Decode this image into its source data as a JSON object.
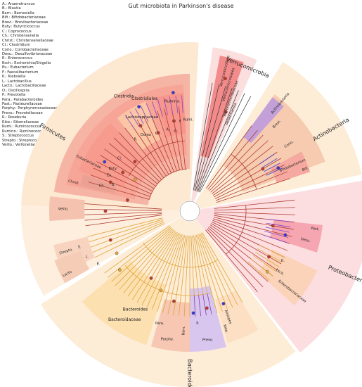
{
  "title": "Gut microbiota in Parkinson's disease",
  "legend": [
    "A.: Anaerotruncus",
    "B.: Blautia",
    "Barn.: Barnesiella",
    "Bifi.: Bifidobacteriaceae",
    "Brevi.: Brevibacteriaceae",
    "Buty.: Butyricicoccus",
    "C.: Coprococcus",
    "Ch.: Christensenella",
    "Christ.: Christensenellaceae",
    "Cl.: Clostridium",
    "Corio.: Coriobacteriaceae",
    "Desu.: Desulfovibrionaceae",
    "E.: Enterococcus",
    "Esch.: Escherichia/Shigella",
    "Eu.: Eubacterium",
    "F.: Faecalibacterium",
    "K.: Klebsiella",
    "L.: Lactobacillus",
    "Lacto.: Lactobacillaceae",
    "O.: Oscillospira",
    "P.: Prevotella",
    "Para.: Parabacteroides",
    "Past.: Pasteurellaceae",
    "Porphy.: Porphyromonadaceae",
    "Prevo.: Prevotellaceae",
    "R.: Roseburia",
    "Rike.: Rikenellaceae",
    "Rumi.: Ruminococcus",
    "Rumino.: Ruminococcaceae",
    "S.: Streptococcus",
    "Strepto.: Streptococcaceae",
    "Veillo.: Veillonellaceae"
  ],
  "phyla": {
    "firmicutes": "Firmicutes",
    "verrucomicrobia": "Verrucomicrobia",
    "actinobacteria": "Actinobacteria",
    "proteobacteria": "Proteobacteria",
    "bacteroidetes": "Bacteroidetes"
  },
  "labels": {
    "clostridia": "Clostridia",
    "clostridiales": "Clostridiales",
    "lachnospiraceae": "Lachnospiraceae",
    "rumino": "Rumino.",
    "r": "R.",
    "dorea": "Dorea",
    "c": "C.",
    "a": "A.",
    "o": "O.",
    "f": "F.",
    "rumi": "Rumi.",
    "cl": "Cl.",
    "buty": "Buty.",
    "eu": "Eu.",
    "eubacteriaceae": "Eubacteriaceae",
    "christ": "Christ.",
    "ch": "Ch.",
    "b": "B.",
    "veillo": "Veillo.",
    "strepto": "Strepto.",
    "s": "S.",
    "l": "L.",
    "lacto": "Lacto.",
    "e": "E.",
    "verrucomicrobiae": "Verrucomicrobiae",
    "verrucomicrobiales": "Verrucomicrobiales",
    "verrucomicrobiaceae": "Verrucomicrobiaceae",
    "akkermansia": "Akkermansia",
    "actinobacteria_class": "Actinobacteria",
    "brevi": "Brevi.",
    "corio": "Corio.",
    "bifidobacterium": "Bifidobacterium",
    "bifi": "Bifi.",
    "desu": "Desu.",
    "past": "Past.",
    "k": "K.",
    "esch": "Esch.",
    "enterobacteriaceae": "Enterobacteriaceae",
    "alistipes": "Alistipes",
    "rike": "Rike.",
    "prevo": "Prevo.",
    "p": "P.",
    "barn": "Barn.",
    "porphy": "Porphy.",
    "para": "Para.",
    "bacteroides": "Bacteroides",
    "bacteroidaceae": "Bacteroidaceae"
  }
}
